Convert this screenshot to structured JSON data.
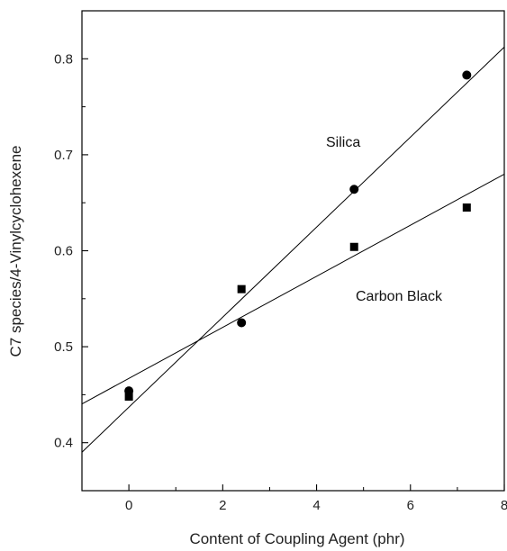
{
  "chart_data": {
    "type": "scatter",
    "xlabel": "Content of Coupling Agent (phr)",
    "ylabel": "C7 species/4-Vinylcyclohexene",
    "xlim": [
      -1,
      8
    ],
    "ylim": [
      0.35,
      0.85
    ],
    "x_ticks": [
      0,
      2,
      4,
      6,
      8
    ],
    "y_ticks": [
      0.4,
      0.5,
      0.6,
      0.7,
      0.8
    ],
    "x_tick_labels": [
      "0",
      "2",
      "4",
      "6",
      "8"
    ],
    "y_tick_labels": [
      "0.4",
      "0.5",
      "0.6",
      "0.7",
      "0.8"
    ],
    "grid": false,
    "series": [
      {
        "name": "Silica",
        "marker": "circle",
        "color": "#000000",
        "points": [
          [
            0,
            0.454
          ],
          [
            2.4,
            0.525
          ],
          [
            4.8,
            0.664
          ],
          [
            7.2,
            0.783
          ]
        ],
        "fit_line": {
          "slope": 0.0469,
          "intercept": 0.437
        }
      },
      {
        "name": "Carbon Black",
        "marker": "square",
        "color": "#000000",
        "points": [
          [
            0,
            0.448
          ],
          [
            2.4,
            0.56
          ],
          [
            4.8,
            0.604
          ],
          [
            7.2,
            0.645
          ]
        ],
        "fit_line": {
          "slope": 0.0266,
          "intercept": 0.467
        }
      }
    ]
  }
}
